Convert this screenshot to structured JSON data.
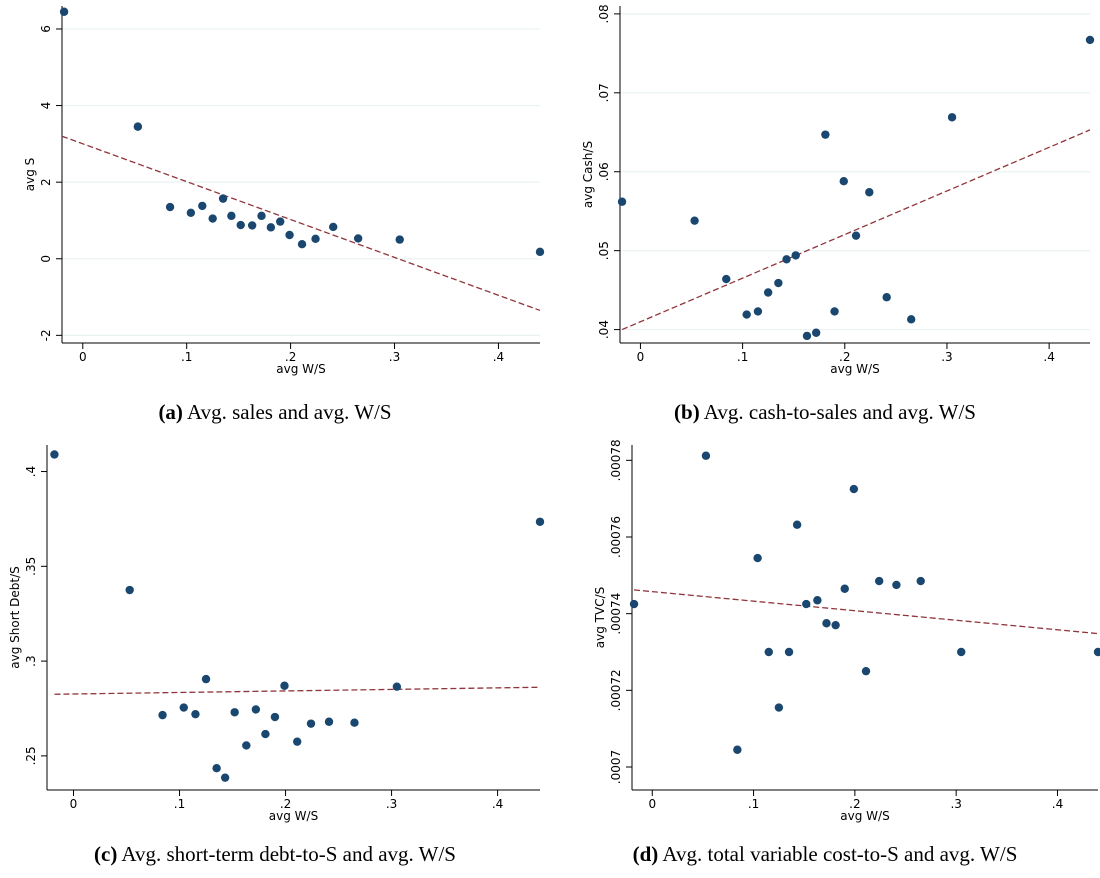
{
  "colors": {
    "point": "#1a476f",
    "fit_line": "#90353b",
    "grid": "#eaf2f3",
    "axis": "#000000"
  },
  "chart_data": [
    {
      "id": "a",
      "type": "scatter",
      "caption_label": "(a)",
      "caption_text": "Avg. sales and avg. W/S",
      "xlabel": "avg W/S",
      "ylabel": "avg S",
      "xlim": [
        -0.02,
        0.44
      ],
      "ylim": [
        -2.2,
        6.6
      ],
      "xticks": [
        0,
        0.1,
        0.2,
        0.3,
        0.4
      ],
      "xtick_labels": [
        "0",
        ".1",
        ".2",
        ".3",
        ".4"
      ],
      "yticks": [
        -2,
        0,
        2,
        4,
        6
      ],
      "ytick_labels": [
        "-2",
        "0",
        "2",
        "4",
        "6"
      ],
      "grid": true,
      "fit_line": [
        [
          -0.02,
          3.2
        ],
        [
          0.44,
          -1.35
        ]
      ],
      "points": [
        [
          -0.018,
          6.45
        ],
        [
          0.053,
          3.45
        ],
        [
          0.084,
          1.35
        ],
        [
          0.104,
          1.2
        ],
        [
          0.115,
          1.38
        ],
        [
          0.125,
          1.05
        ],
        [
          0.135,
          1.57
        ],
        [
          0.143,
          1.12
        ],
        [
          0.152,
          0.88
        ],
        [
          0.163,
          0.87
        ],
        [
          0.172,
          1.12
        ],
        [
          0.181,
          0.82
        ],
        [
          0.19,
          0.97
        ],
        [
          0.199,
          0.62
        ],
        [
          0.211,
          0.38
        ],
        [
          0.224,
          0.52
        ],
        [
          0.241,
          0.83
        ],
        [
          0.265,
          0.53
        ],
        [
          0.305,
          0.5
        ],
        [
          0.44,
          0.18
        ]
      ]
    },
    {
      "id": "b",
      "type": "scatter",
      "caption_label": "(b)",
      "caption_text": "Avg. cash-to-sales and avg. W/S",
      "xlabel": "avg W/S",
      "ylabel": "avg Cash/S",
      "xlim": [
        -0.02,
        0.44
      ],
      "ylim": [
        0.0383,
        0.081
      ],
      "xticks": [
        0,
        0.1,
        0.2,
        0.3,
        0.4
      ],
      "xtick_labels": [
        "0",
        ".1",
        ".2",
        ".3",
        ".4"
      ],
      "yticks": [
        0.04,
        0.05,
        0.06,
        0.07,
        0.08
      ],
      "ytick_labels": [
        ".04",
        ".05",
        ".06",
        ".07",
        ".08"
      ],
      "grid": true,
      "fit_line": [
        [
          -0.018,
          0.04
        ],
        [
          0.44,
          0.0653
        ]
      ],
      "points": [
        [
          -0.018,
          0.0562
        ],
        [
          0.053,
          0.0538
        ],
        [
          0.084,
          0.0464
        ],
        [
          0.104,
          0.0419
        ],
        [
          0.115,
          0.0423
        ],
        [
          0.125,
          0.0447
        ],
        [
          0.135,
          0.0459
        ],
        [
          0.143,
          0.0489
        ],
        [
          0.152,
          0.0494
        ],
        [
          0.163,
          0.0392
        ],
        [
          0.172,
          0.0396
        ],
        [
          0.181,
          0.0647
        ],
        [
          0.19,
          0.0423
        ],
        [
          0.199,
          0.0588
        ],
        [
          0.211,
          0.0519
        ],
        [
          0.224,
          0.0574
        ],
        [
          0.241,
          0.0441
        ],
        [
          0.265,
          0.0413
        ],
        [
          0.305,
          0.0669
        ],
        [
          0.44,
          0.0767
        ]
      ]
    },
    {
      "id": "c",
      "type": "scatter",
      "caption_label": "(c)",
      "caption_text": "Avg. short-term debt-to-S and avg. W/S",
      "xlabel": "avg W/S",
      "ylabel": "avg Short Debt/S",
      "xlim": [
        -0.025,
        0.44
      ],
      "ylim": [
        0.232,
        0.414
      ],
      "xticks": [
        0,
        0.1,
        0.2,
        0.3,
        0.4
      ],
      "xtick_labels": [
        "0",
        ".1",
        ".2",
        ".3",
        ".4"
      ],
      "yticks": [
        0.25,
        0.3,
        0.35,
        0.4
      ],
      "ytick_labels": [
        ".25",
        ".3",
        ".35",
        ".4"
      ],
      "grid": false,
      "fit_line": [
        [
          -0.018,
          0.2825
        ],
        [
          0.44,
          0.2862
        ]
      ],
      "points": [
        [
          -0.018,
          0.409
        ],
        [
          0.053,
          0.3375
        ],
        [
          0.084,
          0.2715
        ],
        [
          0.104,
          0.2755
        ],
        [
          0.115,
          0.272
        ],
        [
          0.125,
          0.2905
        ],
        [
          0.135,
          0.2435
        ],
        [
          0.143,
          0.2385
        ],
        [
          0.152,
          0.273
        ],
        [
          0.163,
          0.2555
        ],
        [
          0.172,
          0.2745
        ],
        [
          0.181,
          0.2615
        ],
        [
          0.19,
          0.2705
        ],
        [
          0.199,
          0.287
        ],
        [
          0.211,
          0.2575
        ],
        [
          0.224,
          0.267
        ],
        [
          0.241,
          0.268
        ],
        [
          0.265,
          0.2675
        ],
        [
          0.305,
          0.2865
        ],
        [
          0.44,
          0.3735
        ]
      ]
    },
    {
      "id": "d",
      "type": "scatter",
      "caption_label": "(d)",
      "caption_text": "Avg. total variable cost-to-S and avg. W/S",
      "xlabel": "avg W/S",
      "ylabel": "avg TVC/S",
      "xlim": [
        -0.02,
        0.44
      ],
      "ylim": [
        0.000694,
        0.000784
      ],
      "xticks": [
        0,
        0.1,
        0.2,
        0.3,
        0.4
      ],
      "xtick_labels": [
        "0",
        ".1",
        ".2",
        ".3",
        ".4"
      ],
      "yticks": [
        0.0007,
        0.00072,
        0.00074,
        0.00076,
        0.00078
      ],
      "ytick_labels": [
        ".0007",
        ".00072",
        ".00074",
        ".00076",
        ".00078"
      ],
      "grid": false,
      "fit_line": [
        [
          -0.018,
          0.0007462
        ],
        [
          0.44,
          0.0007348
        ]
      ],
      "points": [
        [
          -0.018,
          0.0007425
        ],
        [
          0.053,
          0.0007812
        ],
        [
          0.084,
          0.0007045
        ],
        [
          0.104,
          0.0007545
        ],
        [
          0.115,
          0.00073
        ],
        [
          0.125,
          0.0007155
        ],
        [
          0.135,
          0.00073
        ],
        [
          0.143,
          0.0007632
        ],
        [
          0.152,
          0.0007425
        ],
        [
          0.163,
          0.0007435
        ],
        [
          0.172,
          0.0007375
        ],
        [
          0.181,
          0.000737
        ],
        [
          0.19,
          0.0007465
        ],
        [
          0.199,
          0.0007725
        ],
        [
          0.211,
          0.000725
        ],
        [
          0.224,
          0.0007485
        ],
        [
          0.241,
          0.0007475
        ],
        [
          0.265,
          0.0007485
        ],
        [
          0.305,
          0.00073
        ],
        [
          0.44,
          0.00073
        ]
      ]
    }
  ]
}
